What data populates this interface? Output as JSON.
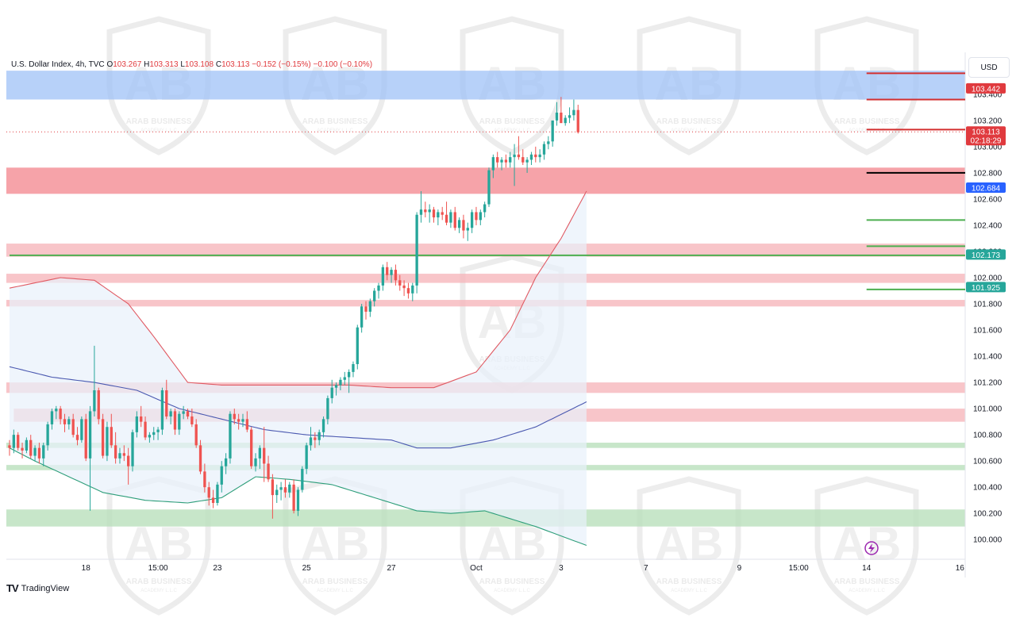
{
  "legend": {
    "symbol": "U.S. Dollar Index, 4h, TVC",
    "open_label": "O",
    "open": "103.267",
    "high_label": "H",
    "high": "103.313",
    "low_label": "L",
    "low": "103.108",
    "close_label": "C",
    "close": "103.113",
    "change": "−0.152 (−0.15%)",
    "change2": "−0.100 (−0.10%)"
  },
  "currency": "USD",
  "brand": {
    "mark": "TV",
    "name": "TradingView"
  },
  "watermark": {
    "line1": "ARAB BUSINESS",
    "line2": "ACADEMY L.L.C"
  },
  "colors": {
    "bull": "#26a69a",
    "bear": "#ef5350",
    "blue_zone": "#9fc1f7",
    "red_zone": "#f48c93",
    "red_zone_light": "#f6b7bc",
    "green_zone": "#b9e0bc",
    "upper_band": "#e05a63",
    "mid_band": "#4a58b0",
    "lower_band": "#2e9e7a",
    "band_fill": "#e8f1fb"
  },
  "chart_data": {
    "type": "candlestick",
    "interval": "4h",
    "y_range": [
      99.85,
      103.72
    ],
    "x_ticks": [
      {
        "i": 18,
        "label": "18"
      },
      {
        "i": 35,
        "label": "15:00"
      },
      {
        "i": 49,
        "label": "23"
      },
      {
        "i": 70,
        "label": "25"
      },
      {
        "i": 90,
        "label": "27"
      },
      {
        "i": 110,
        "label": "Oct"
      },
      {
        "i": 130,
        "label": "3"
      },
      {
        "i": 150,
        "label": "7"
      },
      {
        "i": 172,
        "label": "9"
      },
      {
        "i": 186,
        "label": "15:00"
      },
      {
        "i": 202,
        "label": "14"
      },
      {
        "i": 224,
        "label": "16"
      }
    ],
    "y_ticks": [
      "100.000",
      "100.200",
      "100.400",
      "100.600",
      "100.800",
      "101.000",
      "101.200",
      "101.400",
      "101.600",
      "101.800",
      "102.000",
      "102.200",
      "102.400",
      "102.600",
      "102.800",
      "103.000",
      "103.200",
      "103.400"
    ],
    "price_labels": [
      {
        "value": 103.442,
        "text": "103.442",
        "color": "#e03a3e"
      },
      {
        "value": 103.113,
        "text": "103.113",
        "sub": "02:18:29",
        "color": "#e03a3e"
      },
      {
        "value": 102.684,
        "text": "102.684",
        "color": "#2962ff"
      },
      {
        "value": 102.173,
        "text": "102.173",
        "color": "#26a69a"
      },
      {
        "value": 101.925,
        "text": "101.925",
        "color": "#26a69a"
      }
    ],
    "zones": [
      {
        "from": 103.36,
        "to": 103.58,
        "kind": "blue_zone",
        "x_end": "full"
      },
      {
        "from": 102.64,
        "to": 102.84,
        "kind": "red_zone",
        "x_end": "full"
      },
      {
        "from": 102.16,
        "to": 102.26,
        "kind": "red_zone_light",
        "x_end": "full"
      },
      {
        "from": 101.96,
        "to": 102.03,
        "kind": "red_zone_light",
        "x_end": "full"
      },
      {
        "from": 101.78,
        "to": 101.83,
        "kind": "red_zone_light",
        "x_end": "full"
      },
      {
        "from": 101.12,
        "to": 101.2,
        "kind": "red_zone_light",
        "x_end": "full"
      },
      {
        "from": 100.9,
        "to": 101.0,
        "kind": "red_zone_light",
        "x_start": 1,
        "x_end": "full"
      },
      {
        "from": 100.7,
        "to": 100.74,
        "kind": "green_zone",
        "x_end": "full"
      },
      {
        "from": 100.53,
        "to": 100.57,
        "kind": "green_zone",
        "x_end": "full"
      },
      {
        "from": 100.1,
        "to": 100.23,
        "kind": "green_zone",
        "x_end": "full"
      }
    ],
    "levels": [
      {
        "value": 103.56,
        "color": "#d32f2f",
        "from": 202
      },
      {
        "value": 103.36,
        "color": "#d32f2f",
        "from": 202
      },
      {
        "value": 103.13,
        "color": "#d32f2f",
        "from": 202
      },
      {
        "value": 102.8,
        "color": "#000000",
        "from": 202
      },
      {
        "value": 102.44,
        "color": "#4caf50",
        "from": 202
      },
      {
        "value": 102.24,
        "color": "#4caf50",
        "from": 202
      },
      {
        "value": 102.17,
        "color": "#4caf50",
        "from": 0
      },
      {
        "value": 101.91,
        "color": "#4caf50",
        "from": 202
      }
    ],
    "candles": [
      [
        100.72,
        100.76,
        100.64,
        100.7
      ],
      [
        100.7,
        100.84,
        100.66,
        100.8
      ],
      [
        100.8,
        100.82,
        100.68,
        100.7
      ],
      [
        100.7,
        100.74,
        100.62,
        100.68
      ],
      [
        100.68,
        100.78,
        100.66,
        100.76
      ],
      [
        100.76,
        100.8,
        100.62,
        100.64
      ],
      [
        100.64,
        100.72,
        100.6,
        100.7
      ],
      [
        100.7,
        100.74,
        100.58,
        100.62
      ],
      [
        100.62,
        100.74,
        100.56,
        100.72
      ],
      [
        100.72,
        100.9,
        100.68,
        100.88
      ],
      [
        100.88,
        101.0,
        100.84,
        100.98
      ],
      [
        100.98,
        101.02,
        100.92,
        101.0
      ],
      [
        101.0,
        101.02,
        100.88,
        100.92
      ],
      [
        100.92,
        100.96,
        100.82,
        100.88
      ],
      [
        100.88,
        100.94,
        100.84,
        100.92
      ],
      [
        100.92,
        100.96,
        100.78,
        100.8
      ],
      [
        100.8,
        100.86,
        100.72,
        100.76
      ],
      [
        100.76,
        100.94,
        100.74,
        100.92
      ],
      [
        100.92,
        100.96,
        100.6,
        100.62
      ],
      [
        100.62,
        101.02,
        100.22,
        100.98
      ],
      [
        100.98,
        101.48,
        100.94,
        101.14
      ],
      [
        101.14,
        101.16,
        100.88,
        100.92
      ],
      [
        100.92,
        100.96,
        100.62,
        100.64
      ],
      [
        100.64,
        100.9,
        100.6,
        100.86
      ],
      [
        100.86,
        100.96,
        100.7,
        100.72
      ],
      [
        100.72,
        100.82,
        100.58,
        100.62
      ],
      [
        100.62,
        100.7,
        100.58,
        100.66
      ],
      [
        100.66,
        100.72,
        100.6,
        100.64
      ],
      [
        100.64,
        100.7,
        100.42,
        100.56
      ],
      [
        100.56,
        100.84,
        100.52,
        100.82
      ],
      [
        100.82,
        100.98,
        100.78,
        100.94
      ],
      [
        100.94,
        101.02,
        100.86,
        100.9
      ],
      [
        100.9,
        100.94,
        100.76,
        100.78
      ],
      [
        100.78,
        100.82,
        100.74,
        100.8
      ],
      [
        100.8,
        100.86,
        100.76,
        100.82
      ],
      [
        100.82,
        100.86,
        100.76,
        100.84
      ],
      [
        100.84,
        101.16,
        100.8,
        101.14
      ],
      [
        101.14,
        101.22,
        100.92,
        100.94
      ],
      [
        100.94,
        101.0,
        100.88,
        100.98
      ],
      [
        100.98,
        101.0,
        100.8,
        100.84
      ],
      [
        100.84,
        100.98,
        100.8,
        100.96
      ],
      [
        100.96,
        101.02,
        100.92,
        100.98
      ],
      [
        100.98,
        101.0,
        100.92,
        100.94
      ],
      [
        100.94,
        101.0,
        100.86,
        100.88
      ],
      [
        100.88,
        100.92,
        100.7,
        100.72
      ],
      [
        100.72,
        100.76,
        100.5,
        100.52
      ],
      [
        100.52,
        100.58,
        100.36,
        100.4
      ],
      [
        100.4,
        100.44,
        100.26,
        100.32
      ],
      [
        100.32,
        100.38,
        100.24,
        100.28
      ],
      [
        100.28,
        100.44,
        100.26,
        100.42
      ],
      [
        100.42,
        100.6,
        100.36,
        100.56
      ],
      [
        100.56,
        100.66,
        100.5,
        100.62
      ],
      [
        100.62,
        100.98,
        100.58,
        100.96
      ],
      [
        100.96,
        101.0,
        100.88,
        100.92
      ],
      [
        100.92,
        100.96,
        100.84,
        100.9
      ],
      [
        100.9,
        100.96,
        100.86,
        100.92
      ],
      [
        100.92,
        100.98,
        100.82,
        100.84
      ],
      [
        100.84,
        100.86,
        100.54,
        100.56
      ],
      [
        100.56,
        100.66,
        100.52,
        100.62
      ],
      [
        100.62,
        100.72,
        100.54,
        100.7
      ],
      [
        100.7,
        100.86,
        100.44,
        100.58
      ],
      [
        100.58,
        100.64,
        100.44,
        100.46
      ],
      [
        100.46,
        100.5,
        100.16,
        100.34
      ],
      [
        100.34,
        100.42,
        100.28,
        100.38
      ],
      [
        100.38,
        100.44,
        100.3,
        100.4
      ],
      [
        100.4,
        100.46,
        100.32,
        100.36
      ],
      [
        100.36,
        100.44,
        100.32,
        100.42
      ],
      [
        100.42,
        100.46,
        100.2,
        100.22
      ],
      [
        100.22,
        100.4,
        100.18,
        100.38
      ],
      [
        100.38,
        100.56,
        100.36,
        100.54
      ],
      [
        100.54,
        100.74,
        100.5,
        100.72
      ],
      [
        100.72,
        100.86,
        100.68,
        100.78
      ],
      [
        100.78,
        100.82,
        100.7,
        100.76
      ],
      [
        100.76,
        100.84,
        100.72,
        100.82
      ],
      [
        100.82,
        100.94,
        100.78,
        100.92
      ],
      [
        100.92,
        101.1,
        100.88,
        101.08
      ],
      [
        101.08,
        101.22,
        101.04,
        101.16
      ],
      [
        101.16,
        101.2,
        101.1,
        101.18
      ],
      [
        101.18,
        101.24,
        101.14,
        101.22
      ],
      [
        101.22,
        101.28,
        101.18,
        101.24
      ],
      [
        101.24,
        101.3,
        101.12,
        101.28
      ],
      [
        101.28,
        101.36,
        101.24,
        101.34
      ],
      [
        101.34,
        101.64,
        101.3,
        101.62
      ],
      [
        101.62,
        101.8,
        101.58,
        101.78
      ],
      [
        101.78,
        101.82,
        101.68,
        101.74
      ],
      [
        101.74,
        101.84,
        101.7,
        101.82
      ],
      [
        101.82,
        101.92,
        101.78,
        101.9
      ],
      [
        101.9,
        101.96,
        101.84,
        101.94
      ],
      [
        101.94,
        102.1,
        101.9,
        102.08
      ],
      [
        102.08,
        102.12,
        101.98,
        102.02
      ],
      [
        102.02,
        102.08,
        101.96,
        102.06
      ],
      [
        102.06,
        102.1,
        101.94,
        101.98
      ],
      [
        101.98,
        102.02,
        101.9,
        101.94
      ],
      [
        101.94,
        101.98,
        101.86,
        101.92
      ],
      [
        101.92,
        101.96,
        101.84,
        101.88
      ],
      [
        101.88,
        101.96,
        101.82,
        101.94
      ],
      [
        101.94,
        102.5,
        101.88,
        102.48
      ],
      [
        102.48,
        102.66,
        102.42,
        102.52
      ],
      [
        102.52,
        102.58,
        102.46,
        102.5
      ],
      [
        102.5,
        102.56,
        102.42,
        102.52
      ],
      [
        102.52,
        102.54,
        102.42,
        102.46
      ],
      [
        102.46,
        102.52,
        102.4,
        102.5
      ],
      [
        102.5,
        102.54,
        102.44,
        102.48
      ],
      [
        102.48,
        102.58,
        102.4,
        102.42
      ],
      [
        102.42,
        102.52,
        102.38,
        102.5
      ],
      [
        102.5,
        102.54,
        102.36,
        102.38
      ],
      [
        102.38,
        102.46,
        102.34,
        102.44
      ],
      [
        102.44,
        102.48,
        102.3,
        102.36
      ],
      [
        102.36,
        102.42,
        102.28,
        102.38
      ],
      [
        102.38,
        102.52,
        102.34,
        102.5
      ],
      [
        102.5,
        102.54,
        102.4,
        102.44
      ],
      [
        102.44,
        102.52,
        102.4,
        102.5
      ],
      [
        102.5,
        102.58,
        102.46,
        102.56
      ],
      [
        102.56,
        102.84,
        102.54,
        102.82
      ],
      [
        102.82,
        102.94,
        102.76,
        102.92
      ],
      [
        102.92,
        102.96,
        102.84,
        102.88
      ],
      [
        102.88,
        102.92,
        102.82,
        102.9
      ],
      [
        102.9,
        102.94,
        102.84,
        102.88
      ],
      [
        102.88,
        102.96,
        102.84,
        102.92
      ],
      [
        102.92,
        103.02,
        102.7,
        102.94
      ],
      [
        102.94,
        103.08,
        102.9,
        102.92
      ],
      [
        102.92,
        102.98,
        102.86,
        102.88
      ],
      [
        102.88,
        102.92,
        102.8,
        102.9
      ],
      [
        102.9,
        102.96,
        102.86,
        102.94
      ],
      [
        102.94,
        103.0,
        102.88,
        102.92
      ],
      [
        102.92,
        102.98,
        102.88,
        102.94
      ],
      [
        102.94,
        103.04,
        102.9,
        103.02
      ],
      [
        103.02,
        103.08,
        102.98,
        103.04
      ],
      [
        103.04,
        103.18,
        103.0,
        103.2
      ],
      [
        103.2,
        103.34,
        103.16,
        103.26
      ],
      [
        103.26,
        103.38,
        103.2,
        103.18
      ],
      [
        103.18,
        103.24,
        103.16,
        103.22
      ],
      [
        103.22,
        103.3,
        103.18,
        103.24
      ],
      [
        103.24,
        103.36,
        103.2,
        103.28
      ],
      [
        103.28,
        103.32,
        103.1,
        103.11
      ]
    ],
    "bands": {
      "upper": [
        [
          0,
          101.92
        ],
        [
          12,
          102.0
        ],
        [
          20,
          101.98
        ],
        [
          28,
          101.8
        ],
        [
          34,
          101.55
        ],
        [
          42,
          101.2
        ],
        [
          50,
          101.18
        ],
        [
          60,
          101.18
        ],
        [
          70,
          101.18
        ],
        [
          80,
          101.18
        ],
        [
          90,
          101.16
        ],
        [
          100,
          101.16
        ],
        [
          110,
          101.28
        ],
        [
          118,
          101.6
        ],
        [
          124,
          102.0
        ],
        [
          130,
          102.3
        ],
        [
          140,
          102.9
        ],
        [
          150,
          103.1
        ],
        [
          160,
          103.16
        ],
        [
          170,
          103.24
        ],
        [
          180,
          103.32
        ],
        [
          190,
          103.42
        ],
        [
          196,
          103.44
        ],
        [
          204,
          103.42
        ],
        [
          212,
          103.46
        ],
        [
          220,
          103.48
        ]
      ],
      "middle": [
        [
          0,
          101.32
        ],
        [
          10,
          101.24
        ],
        [
          20,
          101.2
        ],
        [
          30,
          101.14
        ],
        [
          40,
          101.0
        ],
        [
          50,
          100.92
        ],
        [
          60,
          100.84
        ],
        [
          70,
          100.8
        ],
        [
          80,
          100.78
        ],
        [
          90,
          100.76
        ],
        [
          96,
          100.7
        ],
        [
          104,
          100.7
        ],
        [
          114,
          100.76
        ],
        [
          124,
          100.86
        ],
        [
          134,
          101.02
        ],
        [
          144,
          101.18
        ],
        [
          154,
          101.4
        ],
        [
          164,
          101.66
        ],
        [
          174,
          101.88
        ],
        [
          184,
          102.1
        ],
        [
          194,
          102.3
        ],
        [
          204,
          102.5
        ],
        [
          212,
          102.62
        ],
        [
          220,
          102.7
        ]
      ],
      "lower": [
        [
          0,
          100.7
        ],
        [
          6,
          100.6
        ],
        [
          14,
          100.48
        ],
        [
          22,
          100.36
        ],
        [
          32,
          100.3
        ],
        [
          42,
          100.28
        ],
        [
          50,
          100.32
        ],
        [
          58,
          100.48
        ],
        [
          66,
          100.46
        ],
        [
          76,
          100.42
        ],
        [
          86,
          100.32
        ],
        [
          96,
          100.22
        ],
        [
          104,
          100.2
        ],
        [
          112,
          100.22
        ],
        [
          124,
          100.1
        ],
        [
          134,
          99.98
        ],
        [
          144,
          99.86
        ],
        [
          154,
          99.84
        ],
        [
          164,
          99.86
        ],
        [
          172,
          100.0
        ],
        [
          182,
          100.4
        ],
        [
          190,
          100.9
        ],
        [
          198,
          101.3
        ],
        [
          206,
          101.6
        ],
        [
          212,
          101.8
        ],
        [
          220,
          101.92
        ]
      ]
    }
  }
}
